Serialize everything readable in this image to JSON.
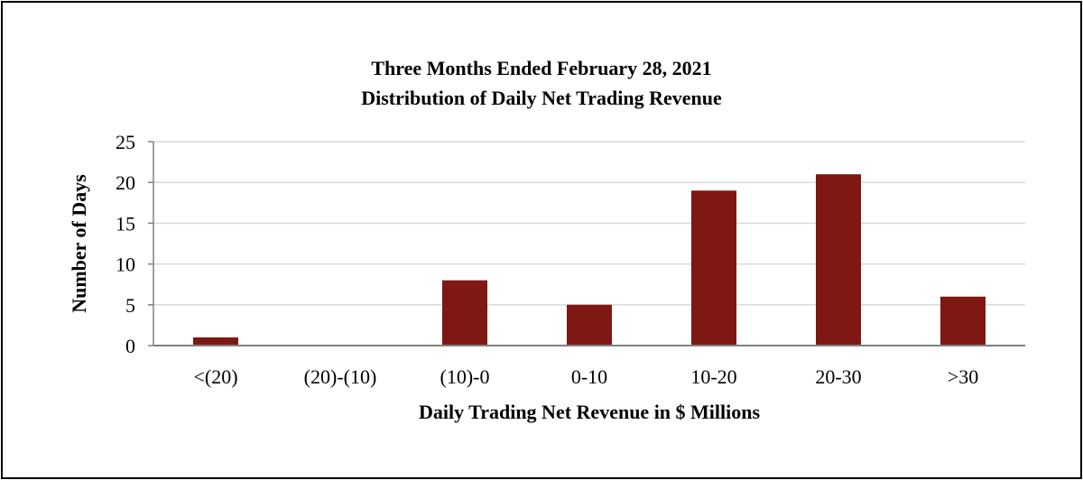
{
  "chart_data": {
    "type": "bar",
    "title_lines": [
      "Three Months Ended February 28, 2021",
      "Distribution of Daily Net Trading Revenue"
    ],
    "xlabel": "Daily Trading Net Revenue in $ Millions",
    "ylabel": "Number of Days",
    "categories": [
      "<(20)",
      "(20)-(10)",
      "(10)-0",
      "0-10",
      "10-20",
      "20-30",
      ">30"
    ],
    "values": [
      1,
      0,
      8,
      5,
      19,
      21,
      6
    ],
    "ylim": [
      0,
      25
    ],
    "yticks": [
      "0",
      "5",
      "10",
      "15",
      "20",
      "25"
    ],
    "ytick_values": [
      0,
      5,
      10,
      15,
      20,
      25
    ],
    "grid": true,
    "bar_color": "#7f1712",
    "grid_color": "#d9d9d9",
    "axis_color": "#808080"
  }
}
